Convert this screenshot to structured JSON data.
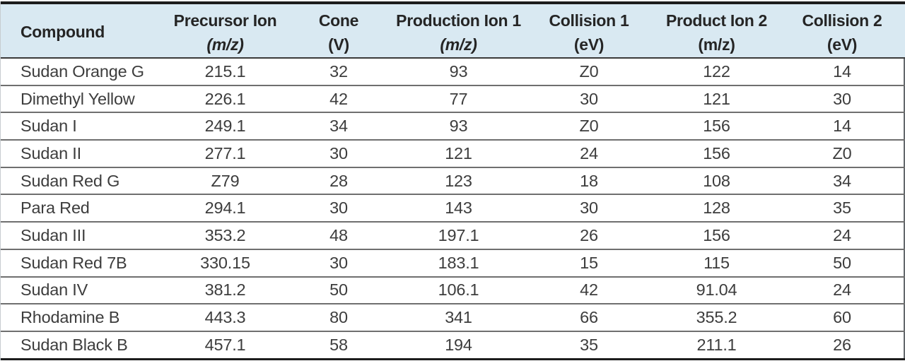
{
  "colors": {
    "header_bg": "#d9e9f2",
    "header_text": "#252525",
    "body_text": "#3d3d3d",
    "row_line": "#6f6f6f",
    "frame_line": "#1c1c1c"
  },
  "table": {
    "columns": [
      {
        "label": "Compound",
        "sub": "",
        "sub_italic": false,
        "align": "left"
      },
      {
        "label": "Precursor Ion",
        "sub": "(m/z)",
        "sub_italic": true,
        "align": "center"
      },
      {
        "label": "Cone",
        "sub": "(V)",
        "sub_italic": false,
        "align": "center"
      },
      {
        "label": "Production Ion 1",
        "sub": "(m/z)",
        "sub_italic": true,
        "align": "center"
      },
      {
        "label": "Collision 1",
        "sub": "(eV)",
        "sub_italic": false,
        "align": "center"
      },
      {
        "label": "Product Ion 2",
        "sub": "(m/z)",
        "sub_italic": false,
        "align": "center"
      },
      {
        "label": "Collision 2",
        "sub": "(eV)",
        "sub_italic": false,
        "align": "center"
      }
    ],
    "rows": [
      [
        "Sudan Orange G",
        "215.1",
        "32",
        "93",
        "Z0",
        "122",
        "14"
      ],
      [
        "Dimethyl Yellow",
        "226.1",
        "42",
        "77",
        "30",
        "121",
        "30"
      ],
      [
        "Sudan I",
        "249.1",
        "34",
        "93",
        "Z0",
        "156",
        "14"
      ],
      [
        "Sudan II",
        "277.1",
        "30",
        "121",
        "24",
        "156",
        "Z0"
      ],
      [
        "Sudan Red G",
        "Z79",
        "28",
        "123",
        "18",
        "108",
        "34"
      ],
      [
        "Para Red",
        "294.1",
        "30",
        "143",
        "30",
        "128",
        "35"
      ],
      [
        "Sudan III",
        "353.2",
        "48",
        "197.1",
        "26",
        "156",
        "24"
      ],
      [
        "Sudan Red 7B",
        "330.15",
        "30",
        "183.1",
        "15",
        "115",
        "50"
      ],
      [
        "Sudan IV",
        "381.2",
        "50",
        "106.1",
        "42",
        "91.04",
        "24"
      ],
      [
        "Rhodamine B",
        "443.3",
        "80",
        "341",
        "66",
        "355.2",
        "60"
      ],
      [
        "Sudan Black B",
        "457.1",
        "58",
        "194",
        "35",
        "211.1",
        "26"
      ]
    ]
  }
}
